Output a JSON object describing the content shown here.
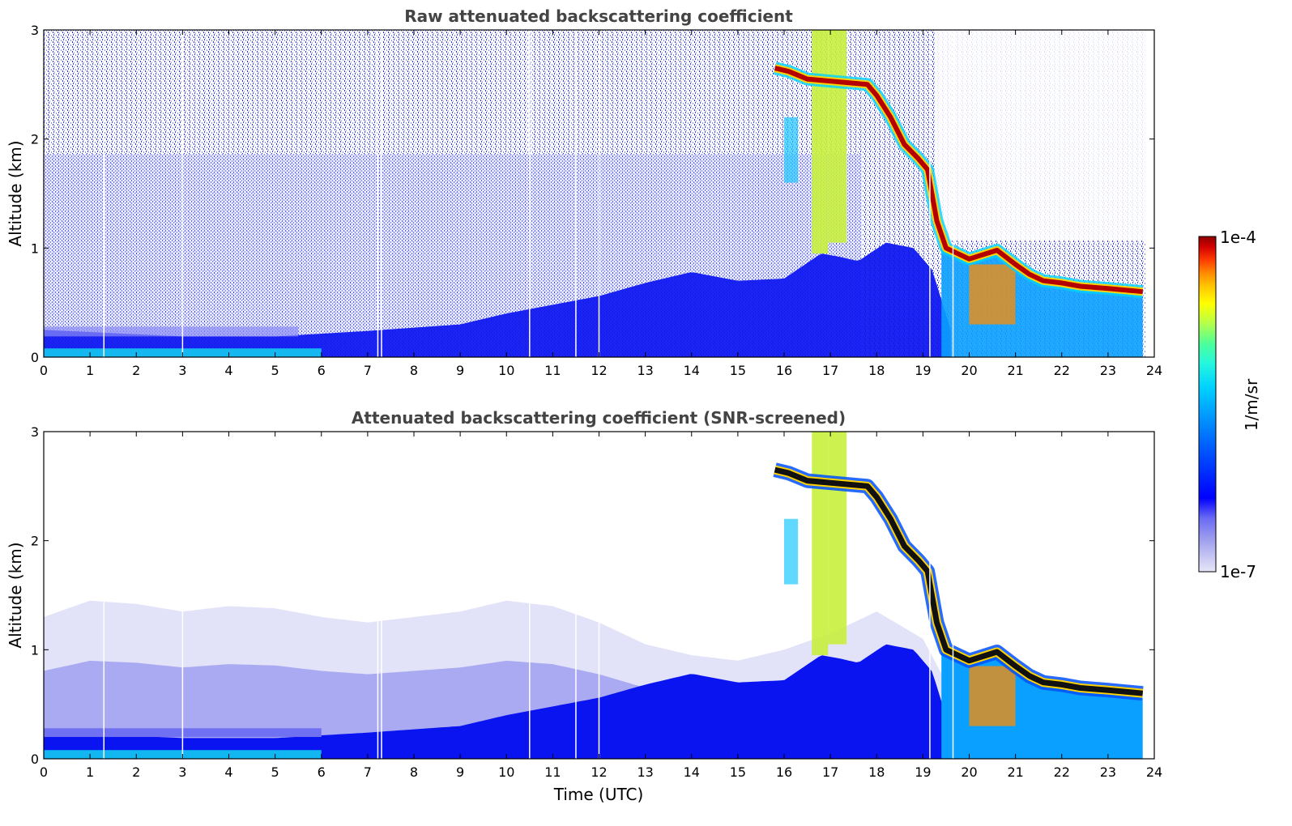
{
  "chart_data": [
    {
      "type": "heatmap",
      "title": "Raw attenuated backscattering coefficient",
      "xlabel": "",
      "ylabel": "Altitude (km)",
      "xlim": [
        0,
        24
      ],
      "ylim": [
        0,
        3
      ],
      "x_ticks": [
        "0",
        "1",
        "2",
        "3",
        "4",
        "5",
        "6",
        "7",
        "8",
        "9",
        "10",
        "11",
        "12",
        "13",
        "14",
        "15",
        "16",
        "17",
        "18",
        "19",
        "20",
        "21",
        "22",
        "23",
        "24"
      ],
      "y_ticks": [
        "0",
        "1",
        "2",
        "3"
      ],
      "data_end_hour": 23.75,
      "gap_times_utc": [
        1.3,
        3.0,
        7.22,
        7.3,
        10.5,
        11.5,
        12.0,
        19.15,
        19.65
      ],
      "boundary_layer_top_km": [
        [
          0,
          0.25
        ],
        [
          3,
          0.19
        ],
        [
          5,
          0.19
        ],
        [
          7,
          0.24
        ],
        [
          9,
          0.3
        ],
        [
          10,
          0.4
        ],
        [
          11,
          0.48
        ],
        [
          12,
          0.56
        ],
        [
          13,
          0.68
        ],
        [
          14,
          0.78
        ],
        [
          15,
          0.7
        ],
        [
          16,
          0.72
        ],
        [
          16.8,
          0.95
        ],
        [
          17.2,
          0.92
        ],
        [
          17.6,
          0.88
        ],
        [
          18.2,
          1.05
        ],
        [
          18.8,
          1.0
        ],
        [
          19.2,
          0.8
        ],
        [
          19.6,
          0.25
        ]
      ],
      "cloud_layer_km": [
        [
          15.8,
          2.65
        ],
        [
          16.1,
          2.62
        ],
        [
          16.5,
          2.55
        ],
        [
          17.8,
          2.5
        ],
        [
          18.0,
          2.4
        ],
        [
          18.3,
          2.2
        ],
        [
          18.6,
          1.95
        ],
        [
          18.9,
          1.82
        ],
        [
          19.1,
          1.72
        ],
        [
          19.3,
          1.25
        ],
        [
          19.5,
          1.0
        ],
        [
          20.0,
          0.9
        ],
        [
          20.6,
          0.98
        ],
        [
          21.0,
          0.85
        ],
        [
          21.3,
          0.76
        ],
        [
          21.6,
          0.7
        ],
        [
          22.0,
          0.68
        ],
        [
          22.4,
          0.65
        ],
        [
          23.0,
          0.63
        ],
        [
          23.75,
          0.6
        ]
      ],
      "plume_bands": [
        {
          "t": [
            16.6,
            16.95
          ],
          "alt_km": [
            0.95,
            3.0
          ]
        },
        {
          "t": [
            16.95,
            17.35
          ],
          "alt_km": [
            1.05,
            3.0
          ]
        }
      ]
    },
    {
      "type": "heatmap",
      "title": "Attenuated backscattering coefficient (SNR-screened)",
      "xlabel": "Time (UTC)",
      "ylabel": "Altitude (km)",
      "xlim": [
        0,
        24
      ],
      "ylim": [
        0,
        3
      ],
      "x_ticks": [
        "0",
        "1",
        "2",
        "3",
        "4",
        "5",
        "6",
        "7",
        "8",
        "9",
        "10",
        "11",
        "12",
        "13",
        "14",
        "15",
        "16",
        "17",
        "18",
        "19",
        "20",
        "21",
        "22",
        "23",
        "24"
      ],
      "y_ticks": [
        "0",
        "1",
        "2",
        "3"
      ],
      "screened_top_km": [
        [
          0,
          1.3
        ],
        [
          1,
          1.45
        ],
        [
          2,
          1.42
        ],
        [
          3,
          1.35
        ],
        [
          4,
          1.4
        ],
        [
          5,
          1.38
        ],
        [
          6,
          1.3
        ],
        [
          7,
          1.25
        ],
        [
          8,
          1.3
        ],
        [
          9,
          1.35
        ],
        [
          10,
          1.45
        ],
        [
          11,
          1.4
        ],
        [
          12,
          1.25
        ],
        [
          13,
          1.05
        ],
        [
          14,
          0.95
        ],
        [
          15,
          0.9
        ],
        [
          16,
          1.0
        ],
        [
          17,
          1.15
        ],
        [
          18,
          1.35
        ],
        [
          19,
          1.1
        ],
        [
          20,
          0.3
        ]
      ]
    }
  ],
  "colorbar": {
    "label": "1/m/sr",
    "max_label": "1e-4",
    "min_label": "1e-7",
    "colors": [
      "#e6e6f7",
      "#c2c2f2",
      "#9b9bef",
      "#6a6af4",
      "#0000ff",
      "#0048ff",
      "#0096ff",
      "#00d2ff",
      "#24f6e0",
      "#4cff9a",
      "#b4ff4c",
      "#ffff00",
      "#ffc800",
      "#ff8c00",
      "#ff3c00",
      "#d20000",
      "#8c0000"
    ]
  }
}
